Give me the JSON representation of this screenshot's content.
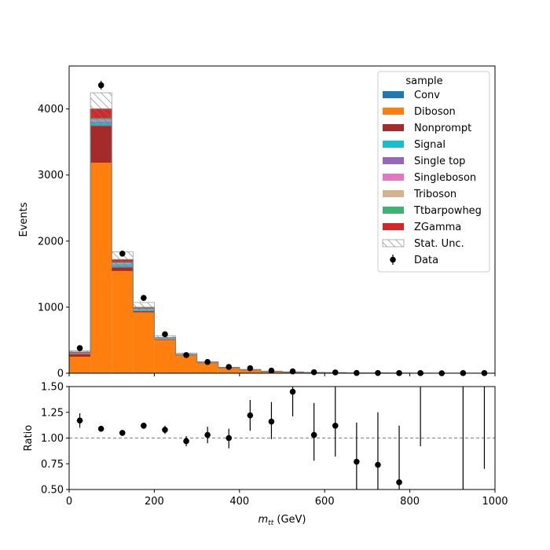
{
  "chart_data": [
    {
      "type": "bar",
      "stacked": true,
      "xlim": [
        0,
        1000
      ],
      "ylim": [
        0,
        4650
      ],
      "ylabel": "Events",
      "bin_edges": [
        0,
        50,
        100,
        150,
        200,
        250,
        300,
        350,
        400,
        450,
        500,
        550,
        600,
        650,
        700,
        750,
        800,
        850,
        900,
        950,
        1000
      ],
      "x_ticks": [
        0,
        200,
        400,
        600,
        800,
        1000
      ],
      "y_ticks": [
        0,
        1000,
        2000,
        3000,
        4000
      ],
      "series": [
        {
          "name": "Conv",
          "color": "#1f77b4",
          "values": [
            0,
            5,
            2,
            1,
            0,
            0,
            0,
            0,
            0,
            0,
            0,
            0,
            0,
            0,
            0,
            0,
            0,
            0,
            0,
            0
          ]
        },
        {
          "name": "Diboson",
          "color": "#ff7f0e",
          "values": [
            250,
            3180,
            1545,
            920,
            500,
            270,
            155,
            80,
            50,
            28,
            18,
            10,
            7,
            4,
            3,
            2,
            1,
            1,
            1,
            1
          ]
        },
        {
          "name": "Nonprompt",
          "color": "#a52a2a",
          "values": [
            40,
            560,
            55,
            20,
            8,
            4,
            2,
            1,
            1,
            0,
            0,
            0,
            0,
            0,
            0,
            0,
            0,
            0,
            0,
            0
          ]
        },
        {
          "name": "Signal",
          "color": "#17becf",
          "values": [
            5,
            50,
            38,
            18,
            10,
            4,
            2,
            1,
            1,
            0,
            0,
            0,
            0,
            0,
            0,
            0,
            0,
            0,
            0,
            0
          ]
        },
        {
          "name": "Single top",
          "color": "#9467bd",
          "values": [
            2,
            15,
            10,
            5,
            3,
            1,
            1,
            0,
            0,
            0,
            0,
            0,
            0,
            0,
            0,
            0,
            0,
            0,
            0,
            0
          ]
        },
        {
          "name": "Singleboson",
          "color": "#e377c2",
          "values": [
            3,
            20,
            10,
            5,
            3,
            1,
            1,
            0,
            0,
            0,
            0,
            0,
            0,
            0,
            0,
            0,
            0,
            0,
            0,
            0
          ]
        },
        {
          "name": "Triboson",
          "color": "#d2b48c",
          "values": [
            1,
            5,
            3,
            2,
            1,
            1,
            0,
            0,
            0,
            0,
            0,
            0,
            0,
            0,
            0,
            0,
            0,
            0,
            0,
            0
          ]
        },
        {
          "name": "Ttbarpowheg",
          "color": "#3cb371",
          "values": [
            4,
            25,
            18,
            10,
            6,
            3,
            1,
            1,
            0,
            0,
            0,
            0,
            0,
            0,
            0,
            0,
            0,
            0,
            0,
            0
          ]
        },
        {
          "name": "ZGamma",
          "color": "#d62728",
          "values": [
            15,
            140,
            40,
            15,
            7,
            3,
            2,
            1,
            1,
            0,
            0,
            0,
            0,
            0,
            0,
            0,
            0,
            0,
            0,
            0
          ]
        }
      ],
      "stat_unc": {
        "name": "Stat. Unc.",
        "up": [
          20,
          245,
          115,
          75,
          30,
          20,
          12,
          8,
          6,
          5,
          4,
          3,
          3,
          2,
          2,
          2,
          1,
          1,
          1,
          1
        ]
      },
      "data": {
        "name": "Data",
        "values": [
          380,
          4360,
          1810,
          1140,
          590,
          275,
          170,
          95,
          75,
          40,
          28,
          15,
          12,
          4,
          3,
          2,
          2,
          0,
          2,
          2
        ]
      },
      "legend": {
        "title": "sample",
        "position": "top-right"
      }
    },
    {
      "type": "scatter",
      "xlabel_html": "m_tt (GeV)",
      "xlabel_main": "m",
      "xlabel_sub": "tt",
      "xlabel_unit": " (GeV)",
      "ylabel": "Ratio",
      "xlim": [
        0,
        1000
      ],
      "ylim": [
        0.5,
        1.5
      ],
      "y_ticks": [
        "0.50",
        "0.75",
        "1.00",
        "1.25",
        "1.50"
      ],
      "x_ticks": [
        "0",
        "200",
        "400",
        "600",
        "800",
        "1000"
      ],
      "reference_line": 1.0,
      "x": [
        25,
        75,
        125,
        175,
        225,
        275,
        325,
        375,
        425,
        475,
        525,
        575,
        625,
        675,
        725,
        775,
        825,
        875,
        925,
        975
      ],
      "ratio": [
        1.17,
        1.09,
        1.05,
        1.12,
        1.08,
        0.97,
        1.03,
        1.0,
        1.22,
        1.16,
        1.45,
        1.03,
        1.12,
        0.77,
        0.74,
        0.57,
        null,
        null,
        null,
        null
      ],
      "err_low": [
        1.1,
        1.07,
        1.03,
        1.09,
        1.04,
        0.92,
        0.95,
        0.9,
        1.07,
        0.99,
        1.21,
        0.78,
        0.82,
        0.4,
        0.2,
        0.0,
        0.92,
        null,
        0.0,
        0.7
      ],
      "err_high": [
        1.24,
        1.11,
        1.07,
        1.15,
        1.12,
        1.02,
        1.11,
        1.09,
        1.37,
        1.35,
        1.7,
        1.34,
        1.6,
        1.15,
        1.25,
        1.12,
        1.6,
        null,
        1.6,
        1.6
      ]
    }
  ]
}
